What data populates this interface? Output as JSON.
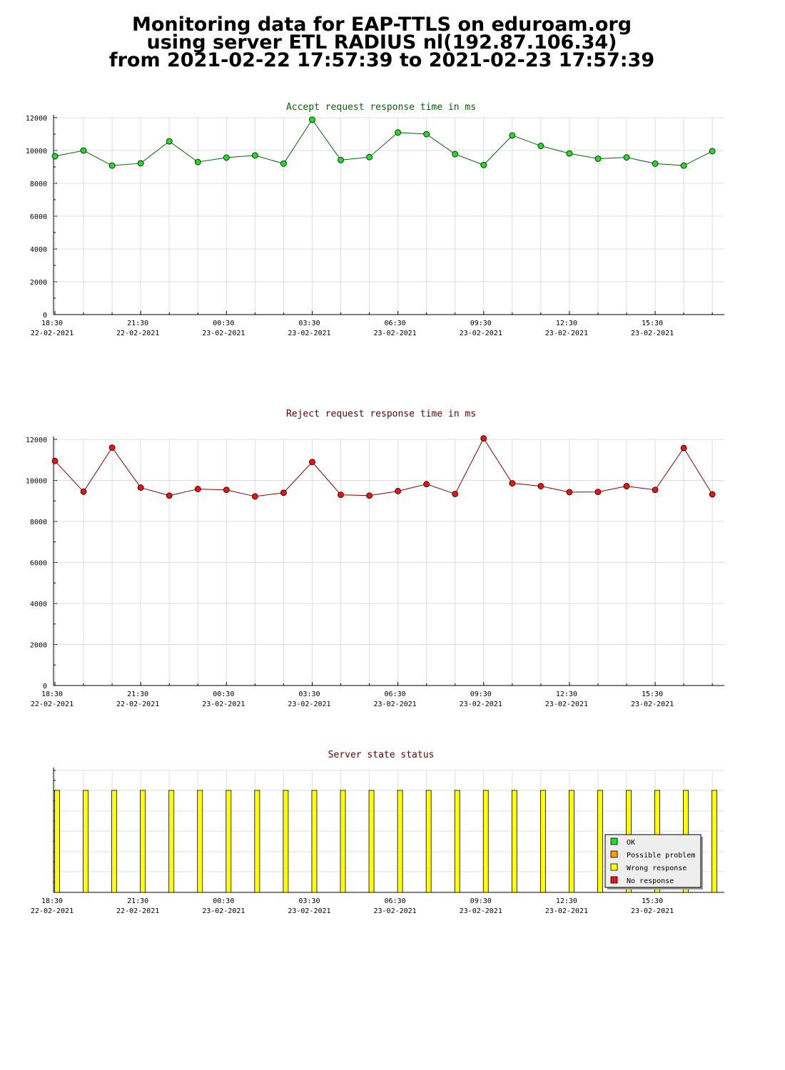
{
  "page_title": {
    "line1": "Monitoring data for EAP-TTLS on eduroam.org",
    "line2": "using server ETL RADIUS nl(192.87.106.34)",
    "line3": "from 2021-02-22 17:57:39 to 2021-02-23 17:57:39"
  },
  "colors": {
    "accept_line": "#006600",
    "accept_marker": "#22dd22",
    "reject_line": "#880000",
    "reject_marker": "#ee1111",
    "status_bar": "#ffff00",
    "grid": "#dddddd",
    "title_accept": "#006600",
    "title_reject": "#660000"
  },
  "time_ticks": [
    {
      "time": "18:30",
      "date": "22-02-2021"
    },
    {
      "time": "21:30",
      "date": "22-02-2021"
    },
    {
      "time": "00:30",
      "date": "23-02-2021"
    },
    {
      "time": "03:30",
      "date": "23-02-2021"
    },
    {
      "time": "06:30",
      "date": "23-02-2021"
    },
    {
      "time": "09:30",
      "date": "23-02-2021"
    },
    {
      "time": "12:30",
      "date": "23-02-2021"
    },
    {
      "time": "15:30",
      "date": "23-02-2021"
    }
  ],
  "chart_data": [
    {
      "type": "line",
      "title": "Accept request response time in ms",
      "ylim": [
        0,
        12000
      ],
      "yticks": [
        "0",
        "2000",
        "4000",
        "6000",
        "8000",
        "10000",
        "12000"
      ],
      "grid": true,
      "x": [
        "18:30",
        "19:30",
        "20:30",
        "21:30",
        "22:30",
        "23:30",
        "00:30",
        "01:30",
        "02:30",
        "03:30",
        "04:30",
        "05:30",
        "06:30",
        "07:30",
        "08:30",
        "09:30",
        "10:30",
        "11:30",
        "12:30",
        "13:30",
        "14:30",
        "15:30",
        "16:30",
        "17:30"
      ],
      "values": [
        9650,
        10000,
        9080,
        9220,
        10560,
        9300,
        9570,
        9700,
        9200,
        11880,
        9420,
        9600,
        11100,
        11000,
        9780,
        9120,
        10920,
        10280,
        9820,
        9500,
        9580,
        9200,
        9080,
        9960
      ]
    },
    {
      "type": "line",
      "title": "Reject request response time in ms",
      "ylim": [
        0,
        12000
      ],
      "yticks": [
        "0",
        "2000",
        "4000",
        "6000",
        "8000",
        "10000",
        "12000"
      ],
      "grid": true,
      "x": [
        "18:30",
        "19:30",
        "20:30",
        "21:30",
        "22:30",
        "23:30",
        "00:30",
        "01:30",
        "02:30",
        "03:30",
        "04:30",
        "05:30",
        "06:30",
        "07:30",
        "08:30",
        "09:30",
        "10:30",
        "11:30",
        "12:30",
        "13:30",
        "14:30",
        "15:30",
        "16:30",
        "17:30"
      ],
      "values": [
        10950,
        9450,
        11600,
        9650,
        9260,
        9580,
        9540,
        9220,
        9400,
        10900,
        9300,
        9260,
        9480,
        9820,
        9340,
        12050,
        9860,
        9720,
        9430,
        9440,
        9720,
        9540,
        11580,
        9320
      ]
    },
    {
      "type": "bar",
      "title": "Server state status",
      "grid": true,
      "x": [
        "18:30",
        "19:30",
        "20:30",
        "21:30",
        "22:30",
        "23:30",
        "00:30",
        "01:30",
        "02:30",
        "03:30",
        "04:30",
        "05:30",
        "06:30",
        "07:30",
        "08:30",
        "09:30",
        "10:30",
        "11:30",
        "12:30",
        "13:30",
        "14:30",
        "15:30",
        "16:30",
        "17:30"
      ],
      "status": [
        "Wrong response",
        "Wrong response",
        "Wrong response",
        "Wrong response",
        "Wrong response",
        "Wrong response",
        "Wrong response",
        "Wrong response",
        "Wrong response",
        "Wrong response",
        "Wrong response",
        "Wrong response",
        "Wrong response",
        "Wrong response",
        "Wrong response",
        "Wrong response",
        "Wrong response",
        "Wrong response",
        "Wrong response",
        "Wrong response",
        "Wrong response",
        "Wrong response",
        "Wrong response",
        "Wrong response"
      ],
      "legend": [
        {
          "label": "OK",
          "color": "#22dd22"
        },
        {
          "label": "Possible problem",
          "color": "#ff9900"
        },
        {
          "label": "Wrong response",
          "color": "#ffff00"
        },
        {
          "label": "No response",
          "color": "#ee1111"
        }
      ],
      "legend_position": "bottom-right"
    }
  ]
}
